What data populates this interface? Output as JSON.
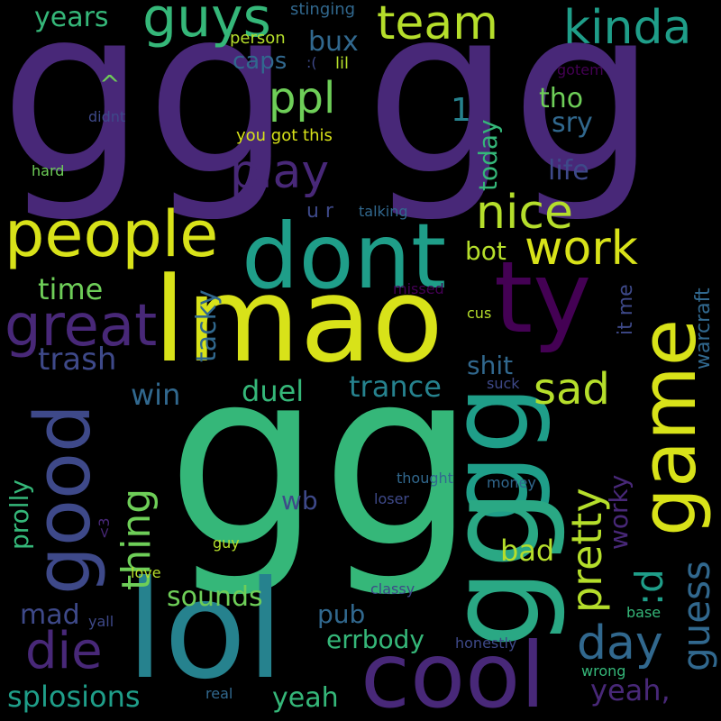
{
  "palette": {
    "background": "#000000",
    "c1": "#440154",
    "c2": "#482878",
    "c3": "#3e4989",
    "c4": "#31688e",
    "c5": "#26828e",
    "c6": "#1f9e89",
    "c7": "#35b779",
    "c8": "#6ece58",
    "c9": "#b5de2b",
    "c10": "#fde725"
  },
  "words": [
    {
      "id": "w1",
      "text": "gg"
    },
    {
      "id": "w2",
      "text": "gg"
    },
    {
      "id": "w3",
      "text": "gg"
    },
    {
      "id": "w4",
      "text": "gg"
    },
    {
      "id": "w5",
      "text": "lmao"
    },
    {
      "id": "w6",
      "text": "dont"
    },
    {
      "id": "w7",
      "text": "lol"
    },
    {
      "id": "w8",
      "text": "cool"
    },
    {
      "id": "w9",
      "text": "game"
    },
    {
      "id": "w10",
      "text": "ty"
    },
    {
      "id": "w11",
      "text": "good"
    },
    {
      "id": "w12",
      "text": "people"
    },
    {
      "id": "w13",
      "text": "great"
    },
    {
      "id": "w14",
      "text": "guys"
    },
    {
      "id": "w15",
      "text": "team"
    },
    {
      "id": "w16",
      "text": "kinda"
    },
    {
      "id": "w17",
      "text": "ppl"
    },
    {
      "id": "w18",
      "text": "play"
    },
    {
      "id": "w19",
      "text": "nice"
    },
    {
      "id": "w20",
      "text": "work"
    },
    {
      "id": "w21",
      "text": "die"
    },
    {
      "id": "w22",
      "text": "day"
    },
    {
      "id": "w23",
      "text": "sad"
    },
    {
      "id": "w24",
      "text": "pretty"
    },
    {
      "id": "w25",
      "text": "thing"
    },
    {
      "id": "w26",
      "text": "guess"
    },
    {
      "id": "w27",
      "text": ":d"
    },
    {
      "id": "w28",
      "text": "yeah,"
    },
    {
      "id": "w29",
      "text": "splosions"
    },
    {
      "id": "w30",
      "text": "trance"
    },
    {
      "id": "w31",
      "text": "trash"
    },
    {
      "id": "w32",
      "text": "duel"
    },
    {
      "id": "w33",
      "text": "win"
    },
    {
      "id": "w34",
      "text": "time"
    },
    {
      "id": "w35",
      "text": "tacky"
    },
    {
      "id": "w36",
      "text": "years"
    },
    {
      "id": "w37",
      "text": "bux"
    },
    {
      "id": "w38",
      "text": "caps"
    },
    {
      "id": "w39",
      "text": "^"
    },
    {
      "id": "w40",
      "text": "1"
    },
    {
      "id": "w41",
      "text": "tho"
    },
    {
      "id": "w42",
      "text": "sry"
    },
    {
      "id": "w43",
      "text": "today"
    },
    {
      "id": "w44",
      "text": "life"
    },
    {
      "id": "w45",
      "text": "bot"
    },
    {
      "id": "w46",
      "text": "u r"
    },
    {
      "id": "w47",
      "text": "shit"
    },
    {
      "id": "w48",
      "text": "it me"
    },
    {
      "id": "w49",
      "text": "warcraft"
    },
    {
      "id": "w50",
      "text": "prolly"
    },
    {
      "id": "w51",
      "text": "wb"
    },
    {
      "id": "w52",
      "text": "bad"
    },
    {
      "id": "w53",
      "text": "worky"
    },
    {
      "id": "w54",
      "text": "sounds"
    },
    {
      "id": "w55",
      "text": "mad"
    },
    {
      "id": "w56",
      "text": "pub"
    },
    {
      "id": "w57",
      "text": "errbody"
    },
    {
      "id": "w58",
      "text": "yeah"
    },
    {
      "id": "w59",
      "text": "stinging"
    },
    {
      "id": "w60",
      "text": "person"
    },
    {
      "id": "w61",
      "text": ":("
    },
    {
      "id": "w62",
      "text": "lil"
    },
    {
      "id": "w63",
      "text": "gotem"
    },
    {
      "id": "w64",
      "text": "didnt"
    },
    {
      "id": "w65",
      "text": "you got this"
    },
    {
      "id": "w66",
      "text": "hard"
    },
    {
      "id": "w67",
      "text": "talking"
    },
    {
      "id": "w68",
      "text": "missed"
    },
    {
      "id": "w69",
      "text": "cus"
    },
    {
      "id": "w70",
      "text": "suck"
    },
    {
      "id": "w71",
      "text": "thought"
    },
    {
      "id": "w72",
      "text": "money"
    },
    {
      "id": "w73",
      "text": "loser"
    },
    {
      "id": "w74",
      "text": "<3"
    },
    {
      "id": "w75",
      "text": "guy"
    },
    {
      "id": "w76",
      "text": "love"
    },
    {
      "id": "w77",
      "text": "classy"
    },
    {
      "id": "w78",
      "text": "yall"
    },
    {
      "id": "w79",
      "text": "base"
    },
    {
      "id": "w80",
      "text": "honestly"
    },
    {
      "id": "w81",
      "text": "wrong"
    },
    {
      "id": "w82",
      "text": "real"
    }
  ]
}
